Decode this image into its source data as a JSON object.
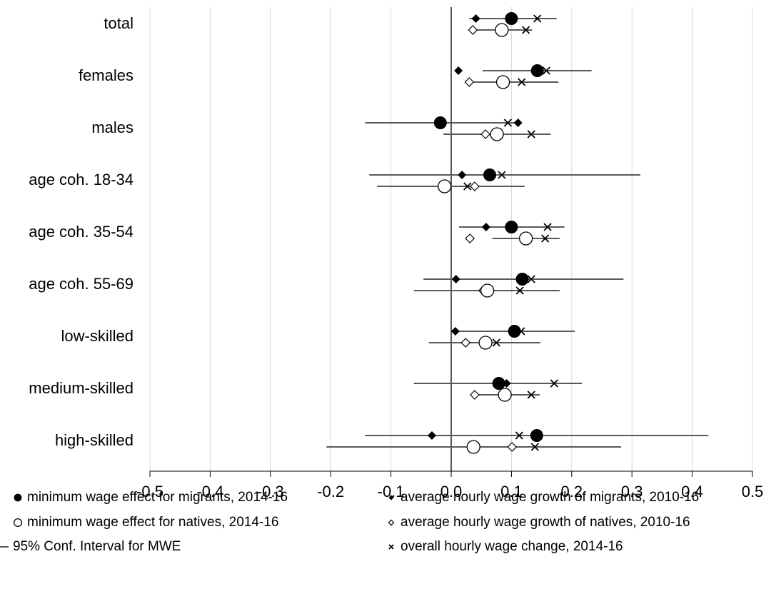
{
  "chart_data": {
    "type": "dot-ci",
    "categories": [
      "total",
      "females",
      "males",
      "age coh. 18-34",
      "age coh. 35-54",
      "age coh. 55-69",
      "low-skilled",
      "medium-skilled",
      "high-skilled"
    ],
    "xlim": [
      -0.5,
      0.5
    ],
    "xticks": [
      -0.5,
      -0.4,
      -0.3,
      -0.2,
      -0.1,
      {
        "value": 0,
        "label": "0.0"
      },
      0.1,
      0.2,
      0.3,
      0.4,
      0.5
    ],
    "grid": true,
    "ci_name": "95% Conf. Interval for MWE",
    "series": [
      {
        "name": "minimum wage effect for migrants, 2014-16",
        "marker": "filled-circle",
        "row": 0,
        "color": "#000000",
        "values": [
          0.1,
          0.143,
          -0.018,
          0.064,
          0.1,
          0.118,
          0.105,
          0.079,
          0.142
        ],
        "ci_low": [
          0.03,
          0.052,
          -0.143,
          -0.136,
          0.013,
          -0.046,
          0.008,
          -0.062,
          -0.143
        ],
        "ci_high": [
          0.175,
          0.233,
          0.11,
          0.314,
          0.188,
          0.286,
          0.205,
          0.217,
          0.427
        ]
      },
      {
        "name": "minimum wage effect for natives, 2014-16",
        "marker": "open-circle",
        "row": 1,
        "color": "#000000",
        "values": [
          0.084,
          0.086,
          0.076,
          -0.011,
          0.124,
          0.06,
          0.057,
          0.089,
          0.037
        ],
        "ci_low": [
          0.035,
          0.03,
          -0.013,
          -0.123,
          0.068,
          -0.062,
          -0.037,
          0.041,
          -0.207
        ],
        "ci_high": [
          0.134,
          0.178,
          0.165,
          0.122,
          0.18,
          0.18,
          0.148,
          0.147,
          0.282
        ]
      },
      {
        "name": "average hourly wage growth of migrants, 2010-16",
        "marker": "filled-diamond",
        "row": 0,
        "color": "#000000",
        "values": [
          0.041,
          0.012,
          0.111,
          0.018,
          0.058,
          0.008,
          0.007,
          0.092,
          -0.032
        ]
      },
      {
        "name": "average hourly wage growth of natives, 2010-16",
        "marker": "open-diamond",
        "row": 1,
        "color": "#000000",
        "values": [
          0.036,
          0.03,
          0.057,
          0.039,
          0.031,
          0.053,
          0.024,
          0.039,
          0.101
        ]
      },
      {
        "name": "overall hourly wage change, 2014-16",
        "marker": "x",
        "color": "#000000",
        "values": [
          0.143,
          0.158,
          0.094,
          0.084,
          0.16,
          0.133,
          0.116,
          0.171,
          0.113
        ],
        "values_natives": [
          0.124,
          0.117,
          0.133,
          0.027,
          0.156,
          0.114,
          0.075,
          0.133,
          0.139
        ]
      }
    ]
  }
}
